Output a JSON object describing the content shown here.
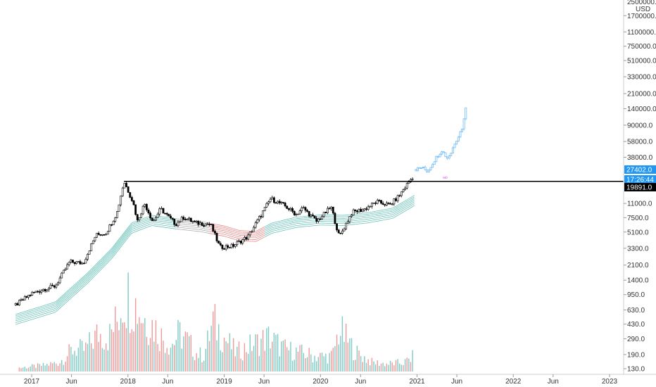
{
  "chart_data": {
    "type": "candlestick",
    "currency": "USD",
    "scale": "log",
    "ylim": [
      120,
      2500000
    ],
    "top_label": "2500000.0",
    "x_tick_labels": [
      "2017",
      "Jun",
      "2018",
      "Jun",
      "2019",
      "Jun",
      "2020",
      "Jun",
      "2021",
      "Jun",
      "2022",
      "Jun",
      "2023"
    ],
    "x_tick_dates": [
      "2017-01-01",
      "2017-06-01",
      "2018-01-01",
      "2018-06-01",
      "2019-01-01",
      "2019-06-01",
      "2020-01-01",
      "2020-06-01",
      "2021-01-01",
      "2021-06-01",
      "2022-01-01",
      "2022-06-01",
      "2023-01-01"
    ],
    "y_tick_labels": [
      "1700000.0",
      "1100000.0",
      "750000.0",
      "510000.0",
      "330000.0",
      "210000.0",
      "140000.0",
      "90000.0",
      "58000.0",
      "38000.0",
      "11000.0",
      "7500.0",
      "5100.0",
      "3300.0",
      "2100.0",
      "1400.0",
      "950.0",
      "630.0",
      "430.0",
      "290.0",
      "190.0",
      "130.0"
    ],
    "y_tick_values": [
      1700000,
      1100000,
      750000,
      510000,
      330000,
      210000,
      140000,
      90000,
      58000,
      38000,
      11000,
      7500,
      5100,
      3300,
      2100,
      1400,
      950,
      630,
      430,
      290,
      190,
      130
    ],
    "resistance_level": 19891,
    "resistance_start_date": "2017-12-17",
    "price_badges": [
      {
        "label": "27402.0",
        "value": 27402,
        "color": "#2196f3"
      },
      {
        "label": "17:26:44",
        "value": 23500,
        "color": "#2196f3"
      },
      {
        "label": "19891.0",
        "value": 19891,
        "color": "#000000"
      }
    ],
    "price_path": [
      [
        "2016-11-01",
        720
      ],
      [
        "2017-01-01",
        980
      ],
      [
        "2017-02-15",
        1100
      ],
      [
        "2017-04-01",
        1200
      ],
      [
        "2017-05-25",
        2300
      ],
      [
        "2017-07-15",
        2200
      ],
      [
        "2017-09-01",
        4700
      ],
      [
        "2017-10-10",
        5000
      ],
      [
        "2017-11-20",
        8500
      ],
      [
        "2017-12-17",
        19891
      ],
      [
        "2018-01-20",
        11500
      ],
      [
        "2018-02-06",
        6900
      ],
      [
        "2018-03-05",
        11000
      ],
      [
        "2018-04-06",
        6700
      ],
      [
        "2018-05-05",
        9500
      ],
      [
        "2018-07-01",
        6300
      ],
      [
        "2018-08-01",
        7600
      ],
      [
        "2018-09-15",
        6500
      ],
      [
        "2018-11-10",
        6300
      ],
      [
        "2018-12-15",
        3400
      ],
      [
        "2019-02-01",
        3500
      ],
      [
        "2019-04-01",
        4500
      ],
      [
        "2019-05-20",
        8000
      ],
      [
        "2019-06-26",
        12500
      ],
      [
        "2019-08-15",
        10500
      ],
      [
        "2019-10-01",
        8200
      ],
      [
        "2019-10-26",
        9800
      ],
      [
        "2019-12-17",
        6800
      ],
      [
        "2020-02-10",
        10000
      ],
      [
        "2020-03-12",
        4500
      ],
      [
        "2020-04-30",
        8700
      ],
      [
        "2020-06-15",
        9400
      ],
      [
        "2020-08-01",
        11500
      ],
      [
        "2020-09-20",
        10500
      ],
      [
        "2020-10-25",
        13500
      ],
      [
        "2020-11-25",
        18500
      ],
      [
        "2020-12-20",
        23500
      ]
    ],
    "projection_path": [
      [
        "2020-12-28",
        27402
      ],
      [
        "2021-01-20",
        29000
      ],
      [
        "2021-02-10",
        26000
      ],
      [
        "2021-03-10",
        36000
      ],
      [
        "2021-04-05",
        46000
      ],
      [
        "2021-04-25",
        37000
      ],
      [
        "2021-05-10",
        43000
      ],
      [
        "2021-05-25",
        57000
      ],
      [
        "2021-06-10",
        70000
      ],
      [
        "2021-06-25",
        90000
      ],
      [
        "2021-07-10",
        190000
      ]
    ],
    "volume": [
      [
        "2016-11-15",
        0.05
      ],
      [
        "2017-02-15",
        0.08
      ],
      [
        "2017-04-15",
        0.12
      ],
      [
        "2017-06-10",
        0.3
      ],
      [
        "2017-07-20",
        0.28
      ],
      [
        "2017-09-10",
        0.5
      ],
      [
        "2017-10-20",
        0.45
      ],
      [
        "2017-11-25",
        0.7
      ],
      [
        "2017-12-10",
        0.95
      ],
      [
        "2018-01-05",
        1.0
      ],
      [
        "2018-02-05",
        0.85
      ],
      [
        "2018-03-05",
        0.7
      ],
      [
        "2018-04-10",
        0.6
      ],
      [
        "2018-05-10",
        0.45
      ],
      [
        "2018-06-15",
        0.35
      ],
      [
        "2018-07-15",
        0.5
      ],
      [
        "2018-08-15",
        0.4
      ],
      [
        "2018-09-15",
        0.25
      ],
      [
        "2018-10-15",
        0.2
      ],
      [
        "2018-11-20",
        0.65
      ],
      [
        "2018-12-20",
        0.5
      ],
      [
        "2019-02-15",
        0.25
      ],
      [
        "2019-04-15",
        0.35
      ],
      [
        "2019-06-20",
        0.45
      ],
      [
        "2019-08-15",
        0.3
      ],
      [
        "2019-10-15",
        0.25
      ],
      [
        "2019-12-15",
        0.2
      ],
      [
        "2020-02-15",
        0.2
      ],
      [
        "2020-03-12",
        0.55
      ],
      [
        "2020-05-15",
        0.25
      ],
      [
        "2020-07-15",
        0.12
      ],
      [
        "2020-09-15",
        0.1
      ],
      [
        "2020-11-15",
        0.12
      ],
      [
        "2020-12-20",
        0.2
      ]
    ],
    "ma_ribbon": {
      "colors_up": "#4db6ac",
      "colors_down": "#e57373",
      "neutral": "#9e9e9e",
      "path": [
        [
          "2016-11-01",
          560
        ],
        [
          "2017-04-01",
          780
        ],
        [
          "2017-08-01",
          1700
        ],
        [
          "2017-11-01",
          3300
        ],
        [
          "2018-01-15",
          6500
        ],
        [
          "2018-04-01",
          8000
        ],
        [
          "2018-07-01",
          7300
        ],
        [
          "2018-10-01",
          6800
        ],
        [
          "2019-01-01",
          6000
        ],
        [
          "2019-03-01",
          5300
        ],
        [
          "2019-05-01",
          5200
        ],
        [
          "2019-07-01",
          6500
        ],
        [
          "2019-10-01",
          7600
        ],
        [
          "2020-01-01",
          8100
        ],
        [
          "2020-04-01",
          8000
        ],
        [
          "2020-07-01",
          8600
        ],
        [
          "2020-10-01",
          9700
        ],
        [
          "2020-12-28",
          14000
        ]
      ]
    }
  }
}
